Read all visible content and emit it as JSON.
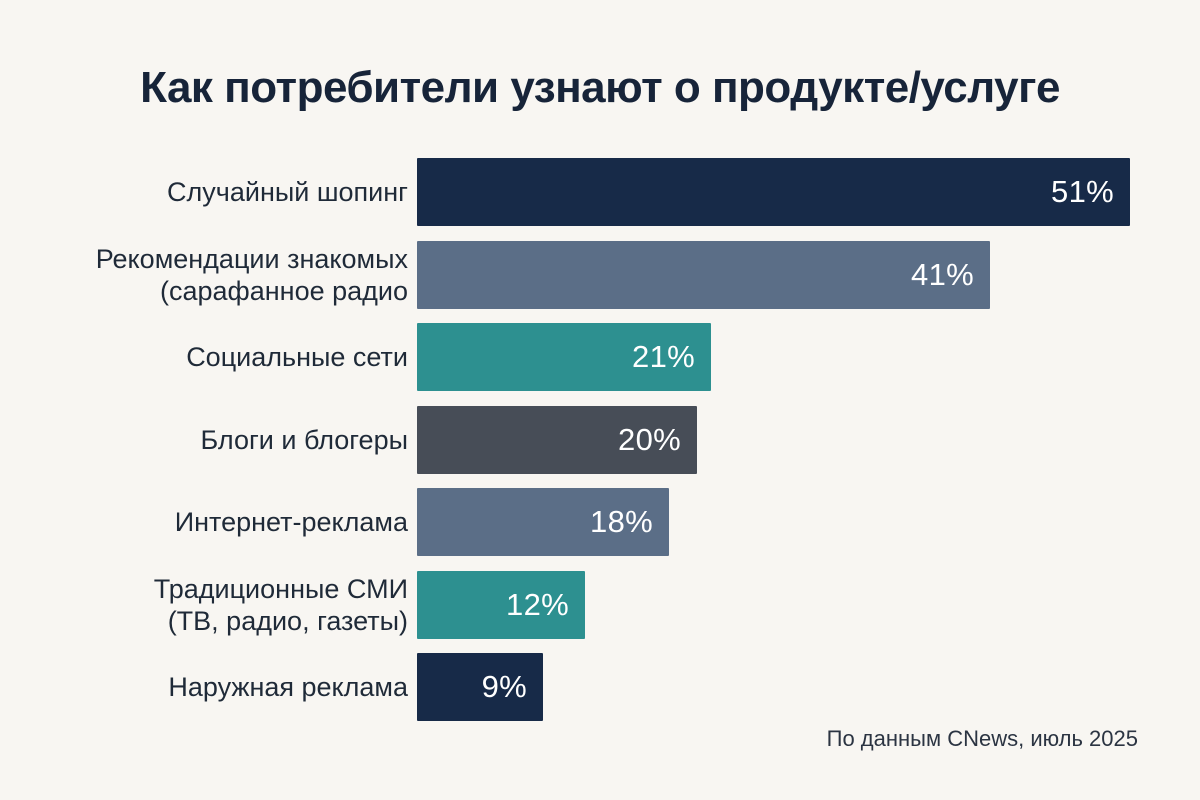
{
  "chart_data": {
    "type": "bar",
    "orientation": "horizontal",
    "title": "Как потребители узнают о продукте/услуге",
    "categories": [
      "Случайный шопинг",
      "Рекомендации знакомых\n(сарафанное радио",
      "Социальные сети",
      "Блоги и блогеры",
      "Интернет-реклама",
      "Традиционные СМИ\n(ТВ, радио, газеты)",
      "Наружная реклама"
    ],
    "values": [
      51,
      41,
      21,
      20,
      18,
      12,
      9
    ],
    "value_labels": [
      "51%",
      "41%",
      "21%",
      "20%",
      "18%",
      "12%",
      "9%"
    ],
    "colors": [
      "#172a48",
      "#5b6e87",
      "#2d9090",
      "#474d57",
      "#5b6e87",
      "#2d9090",
      "#172a48"
    ],
    "xlim": [
      0,
      51
    ],
    "xlabel": "",
    "ylabel": "",
    "grid": false,
    "legend": "none",
    "source": "По данным CNews, июль 2025"
  }
}
